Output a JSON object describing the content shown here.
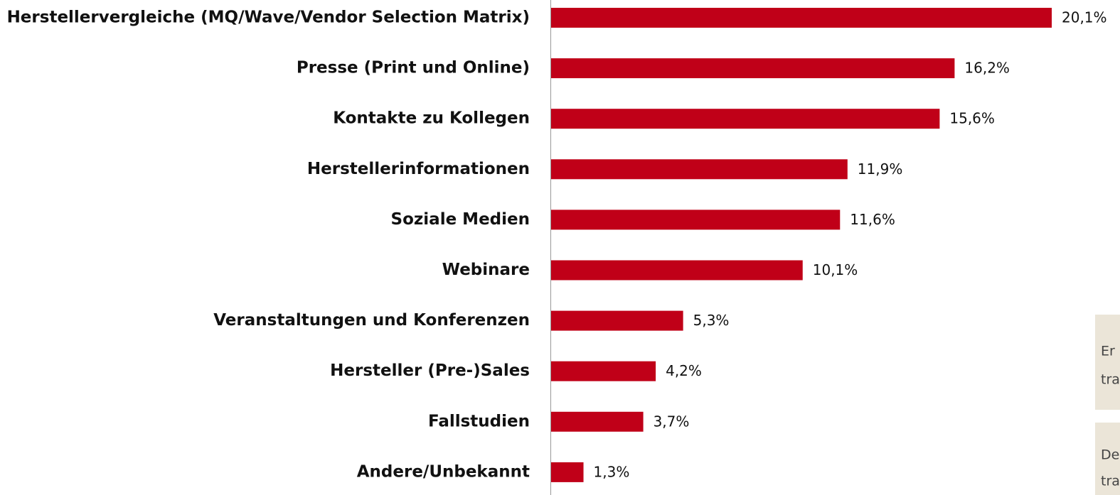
{
  "chart_data": {
    "type": "bar",
    "orientation": "horizontal",
    "categories": [
      "Herstellervergleiche (MQ/Wave/Vendor Selection Matrix)",
      "Presse (Print und Online)",
      "Kontakte zu Kollegen",
      "Herstellerinformationen",
      "Soziale Medien",
      "Webinare",
      "Veranstaltungen und Konferenzen",
      "Hersteller (Pre-)Sales",
      "Fallstudien",
      "Andere/Unbekannt"
    ],
    "values": [
      20.1,
      16.2,
      15.6,
      11.9,
      11.6,
      10.1,
      5.3,
      4.2,
      3.7,
      1.3
    ],
    "value_labels": [
      "20,1%",
      "16,2%",
      "15,6%",
      "11,9%",
      "11,6%",
      "10,1%",
      "5,3%",
      "4,2%",
      "3,7%",
      "1,3%"
    ],
    "color": "#c00018"
  },
  "notes": [
    {
      "lines": [
        "Er",
        "tra"
      ]
    },
    {
      "lines": [
        "De",
        "tra"
      ]
    }
  ]
}
